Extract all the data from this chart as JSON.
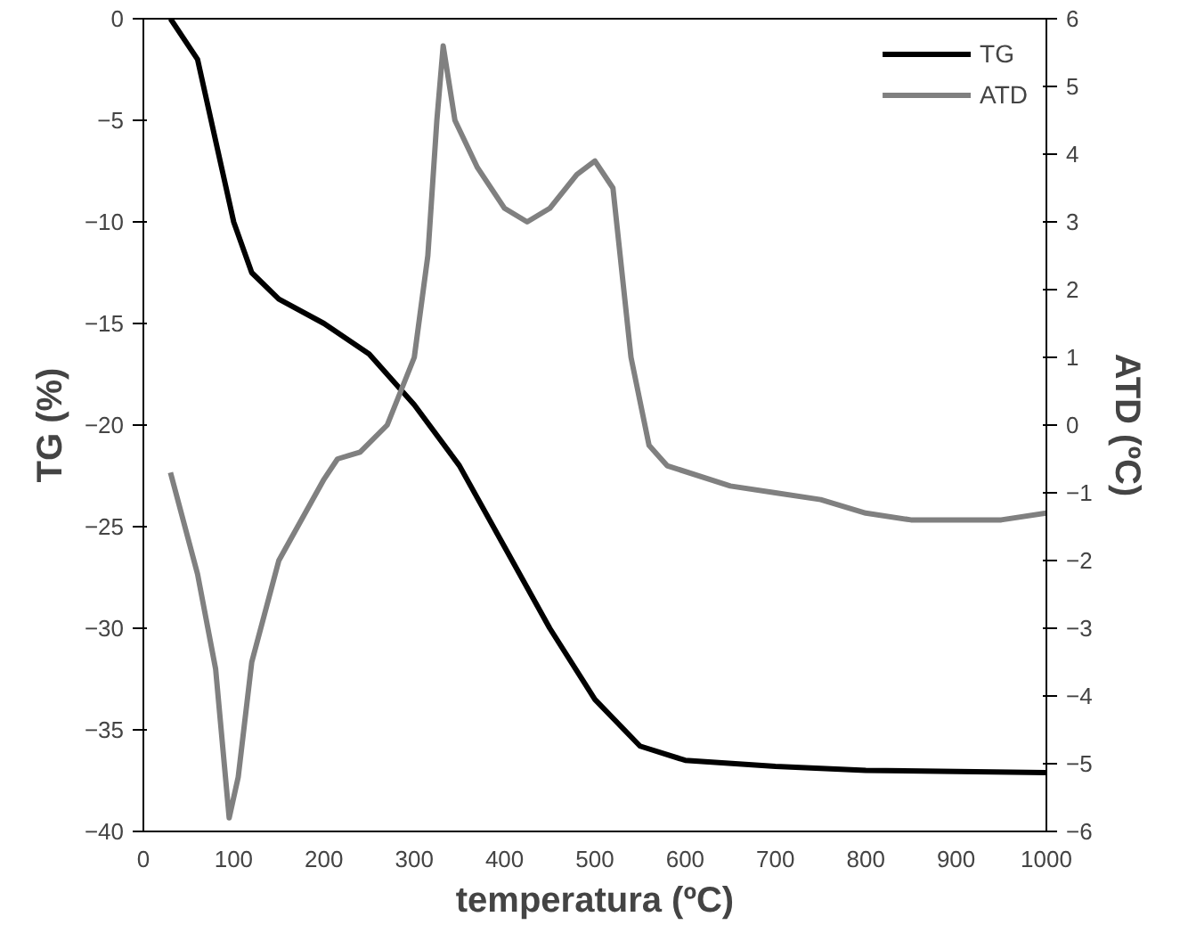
{
  "chart_data": {
    "type": "line",
    "xlabel": "temperatura (ºC)",
    "ylabel": "TG (%)",
    "y2label": "ATD (ºC)",
    "xlim": [
      0,
      1000
    ],
    "xticks": [
      0,
      100,
      200,
      300,
      400,
      500,
      600,
      700,
      800,
      900,
      1000
    ],
    "ylim": [
      -40,
      0
    ],
    "yticks": [
      -40,
      -35,
      -30,
      -25,
      -20,
      -15,
      -10,
      -5,
      0
    ],
    "y2lim": [
      -6,
      6
    ],
    "y2ticks": [
      -6,
      -5,
      -4,
      -3,
      -2,
      -1,
      0,
      1,
      2,
      3,
      4,
      5,
      6
    ],
    "grid": false,
    "legend": "top right",
    "marker": "none",
    "line_style": "solid",
    "series": [
      {
        "name": "TG",
        "color": "#000000",
        "x": [
          30,
          60,
          80,
          100,
          120,
          150,
          200,
          250,
          300,
          350,
          400,
          450,
          500,
          550,
          600,
          700,
          800,
          1000
        ],
        "values": [
          0,
          -2,
          -6,
          -10,
          -12.5,
          -13.8,
          -15,
          -16.5,
          -19,
          -22,
          -26,
          -30,
          -33.5,
          -35.8,
          -36.5,
          -36.8,
          -37,
          -37.1
        ]
      },
      {
        "name": "ATD",
        "color": "#808080",
        "axis": "y2",
        "x": [
          30,
          60,
          80,
          95,
          105,
          120,
          150,
          200,
          215,
          240,
          270,
          300,
          315,
          325,
          332,
          345,
          370,
          400,
          425,
          450,
          480,
          500,
          520,
          540,
          560,
          580,
          650,
          700,
          750,
          800,
          850,
          900,
          950,
          1000
        ],
        "values": [
          -0.7,
          -2.2,
          -3.6,
          -5.8,
          -5.2,
          -3.5,
          -2,
          -0.8,
          -0.5,
          -0.4,
          0,
          1,
          2.5,
          4.5,
          5.6,
          4.5,
          3.8,
          3.2,
          3,
          3.2,
          3.7,
          3.9,
          3.5,
          1,
          -0.3,
          -0.6,
          -0.9,
          -1,
          -1.1,
          -1.3,
          -1.4,
          -1.4,
          -1.4,
          -1.3
        ]
      }
    ]
  }
}
